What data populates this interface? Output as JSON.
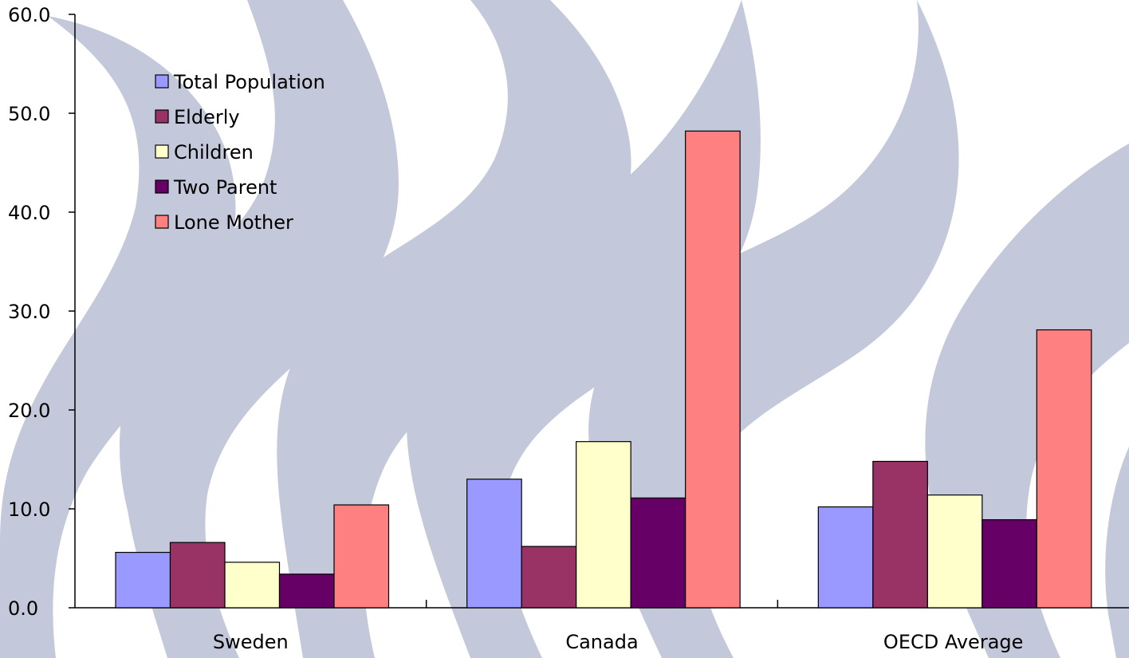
{
  "chart_data": {
    "type": "bar",
    "categories": [
      "Sweden",
      "Canada",
      "OECD Average"
    ],
    "series": [
      {
        "name": "Total Population",
        "color": "#9999FF",
        "values": [
          5.6,
          13.0,
          10.2
        ]
      },
      {
        "name": "Elderly",
        "color": "#993366",
        "values": [
          6.6,
          6.2,
          14.8
        ]
      },
      {
        "name": "Children",
        "color": "#FFFFCC",
        "values": [
          4.6,
          16.8,
          11.4
        ]
      },
      {
        "name": "Two Parent",
        "color": "#660066",
        "values": [
          3.4,
          11.1,
          8.9
        ]
      },
      {
        "name": "Lone Mother",
        "color": "#FF8080",
        "values": [
          10.4,
          48.2,
          28.1
        ]
      }
    ],
    "ylim": [
      0,
      60
    ],
    "yticks": [
      "0.0",
      "10.0",
      "20.0",
      "30.0",
      "40.0",
      "50.0",
      "60.0"
    ],
    "xlabel": "",
    "ylabel": "",
    "title": "",
    "grid": false,
    "legend_position": "top-left"
  },
  "background": {
    "watermark_color": "#C3C8DB"
  }
}
